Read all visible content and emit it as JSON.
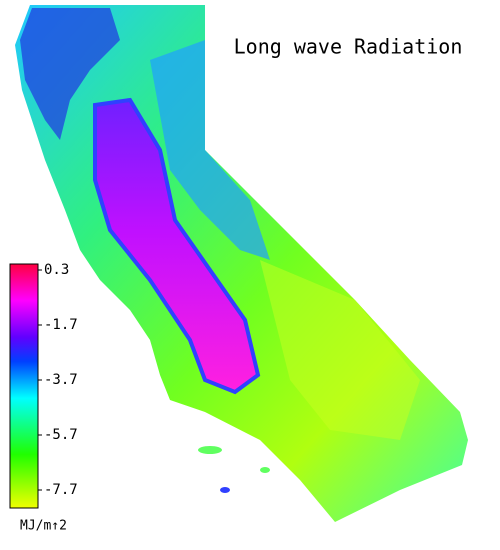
{
  "title": "Long wave Radiation",
  "colorbar": {
    "ticks": [
      0.3,
      -1.7,
      -3.7,
      -5.7,
      -7.7
    ],
    "unit": "MJ/m↑2"
  }
}
